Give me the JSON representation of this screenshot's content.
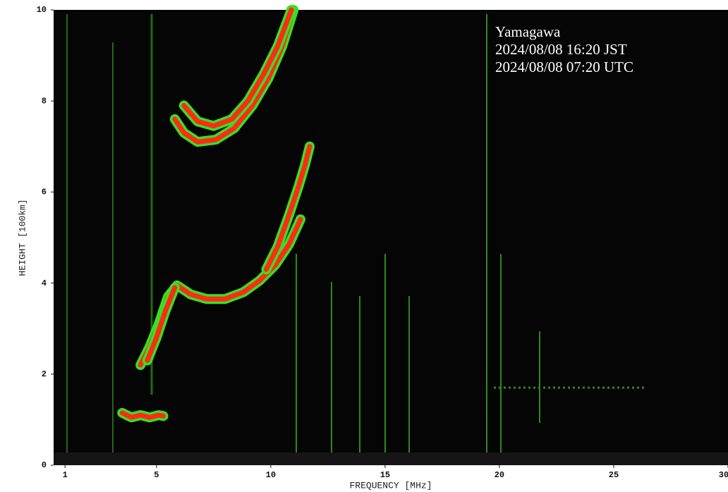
{
  "chart_data": {
    "type": "line",
    "annotations": [
      "Yamagawa",
      "2024/08/08 16:20 JST",
      "2024/08/08 07:20 UTC"
    ],
    "x_label": "FREQUENCY [MHz]",
    "y_label": "HEIGHT [100km]",
    "xlim": [
      0.5,
      30
    ],
    "ylim": [
      0,
      10
    ],
    "xticks": [
      1,
      5,
      10,
      15,
      20,
      25,
      30
    ],
    "yticks": [
      0,
      2,
      4,
      6,
      8,
      10
    ],
    "series": [
      {
        "color": "#ff2a1a",
        "x": [
          3.5,
          3.9,
          4.3,
          4.7,
          5.1,
          5.3
        ],
        "values": [
          1.15,
          1.05,
          1.1,
          1.05,
          1.1,
          1.08
        ]
      },
      {
        "color": "#ff2a1a",
        "x": [
          4.3,
          4.7,
          5.1,
          5.5,
          5.9,
          6.5,
          7.2,
          8.0,
          8.8,
          9.5,
          10.2,
          10.8,
          11.3
        ],
        "values": [
          2.2,
          2.6,
          3.1,
          3.7,
          3.95,
          3.75,
          3.65,
          3.65,
          3.8,
          4.05,
          4.4,
          4.85,
          5.4
        ]
      },
      {
        "color": "#ff2a1a",
        "x": [
          4.6,
          5.0,
          5.4,
          5.8
        ],
        "values": [
          2.3,
          2.8,
          3.4,
          3.9
        ]
      },
      {
        "color": "#ff2a1a",
        "x": [
          9.8,
          10.3,
          10.8,
          11.2,
          11.5,
          11.7
        ],
        "values": [
          4.3,
          4.8,
          5.5,
          6.1,
          6.6,
          7.0
        ]
      },
      {
        "color": "#ff2a1a",
        "x": [
          5.8,
          6.2,
          6.8,
          7.6,
          8.4,
          9.2,
          9.9,
          10.5,
          11.0
        ],
        "values": [
          7.6,
          7.3,
          7.1,
          7.15,
          7.4,
          7.9,
          8.5,
          9.2,
          10.0
        ]
      },
      {
        "color": "#ff2a1a",
        "x": [
          6.2,
          6.8,
          7.5,
          8.3,
          9.0,
          9.7,
          10.3,
          10.9
        ],
        "values": [
          7.9,
          7.55,
          7.45,
          7.6,
          8.0,
          8.6,
          9.2,
          10.0
        ]
      }
    ]
  }
}
